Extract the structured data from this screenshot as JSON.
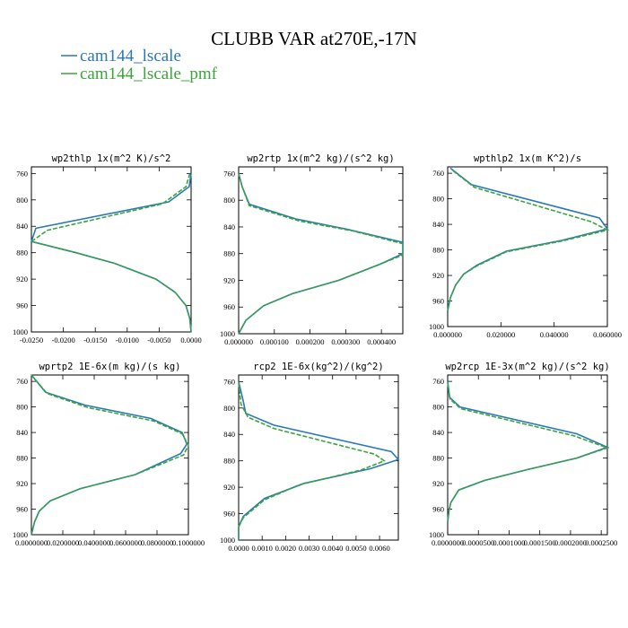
{
  "figure": {
    "title": "CLUBB VAR at270E,-17N",
    "legend": [
      {
        "label": "cam144_lscale",
        "color": "#2b78b6"
      },
      {
        "label": "cam144_lscale_pmf",
        "color": "#3aa53a"
      }
    ]
  },
  "chart_data": [
    {
      "type": "line",
      "title": "wp2thlp  1x(m^2 K)/s^2",
      "xlim": [
        -0.025,
        0.0
      ],
      "ylim": [
        1000,
        750
      ],
      "xticks": [
        -0.025,
        -0.02,
        -0.015,
        -0.01,
        -0.005,
        0.0
      ],
      "xtick_labels": [
        "-0.0250",
        "-0.0200",
        "-0.0150",
        "-0.0100",
        "-0.0050",
        "0.0000"
      ],
      "yticks": [
        760,
        800,
        840,
        880,
        920,
        960,
        1000
      ],
      "series": [
        {
          "name": "cam144_lscale",
          "color": "#2b78b6",
          "dashed": false,
          "x": [
            0.0,
            -0.0003,
            -0.0035,
            -0.0243,
            -0.025,
            -0.018,
            -0.012,
            -0.0055,
            -0.0025,
            -0.0008,
            -0.0002,
            0.0
          ],
          "y": [
            760,
            780,
            803,
            843,
            863,
            880,
            896,
            920,
            940,
            960,
            980,
            1000
          ]
        },
        {
          "name": "cam144_lscale_pmf",
          "color": "#3aa53a",
          "dashed": true,
          "x": [
            -0.0002,
            -0.0008,
            -0.0045,
            -0.0225,
            -0.025,
            -0.018,
            -0.012,
            -0.0055,
            -0.0025,
            -0.0008,
            -0.0002,
            0.0
          ],
          "y": [
            760,
            780,
            806,
            846,
            863,
            880,
            896,
            920,
            940,
            960,
            980,
            1000
          ]
        }
      ]
    },
    {
      "type": "line",
      "title": "wp2rtp  1x(m^2 kg)/(s^2 kg)",
      "xlim": [
        0.0,
        0.00046
      ],
      "ylim": [
        1000,
        750
      ],
      "xticks": [
        0.0,
        0.0001,
        0.0002,
        0.0003,
        0.0004
      ],
      "xtick_labels": [
        "0.000000",
        "0.000100",
        "0.000200",
        "0.000300",
        "0.000400"
      ],
      "yticks": [
        760,
        800,
        840,
        880,
        920,
        960,
        1000
      ],
      "series": [
        {
          "name": "cam144_lscale",
          "color": "#2b78b6",
          "dashed": false,
          "x": [
            0.0,
            1e-05,
            3e-05,
            0.00016,
            0.0003,
            0.00046,
            0.00046,
            0.0004,
            0.00028,
            0.00015,
            7e-05,
            2e-05,
            0.0
          ],
          "y": [
            760,
            780,
            806,
            828,
            843,
            863,
            880,
            895,
            920,
            940,
            958,
            980,
            1000
          ]
        },
        {
          "name": "cam144_lscale_pmf",
          "color": "#3aa53a",
          "dashed": true,
          "x": [
            0.0,
            1e-05,
            3e-05,
            0.00017,
            0.00032,
            0.00046,
            0.00046,
            0.0004,
            0.00028,
            0.00015,
            7e-05,
            2e-05,
            0.0
          ],
          "y": [
            760,
            780,
            808,
            831,
            846,
            865,
            882,
            895,
            920,
            940,
            958,
            980,
            1000
          ]
        }
      ]
    },
    {
      "type": "line",
      "title": "wpthlp2  1x(m K^2)/s",
      "xlim": [
        0.0,
        0.06
      ],
      "ylim": [
        1000,
        750
      ],
      "xticks": [
        0.0,
        0.02,
        0.04,
        0.06
      ],
      "xtick_labels": [
        "0.000000",
        "0.020000",
        "0.040000",
        "0.060000"
      ],
      "yticks": [
        760,
        800,
        840,
        880,
        920,
        960,
        1000
      ],
      "series": [
        {
          "name": "cam144_lscale",
          "color": "#2b78b6",
          "dashed": false,
          "x": [
            0.001,
            0.009,
            0.057,
            0.06,
            0.043,
            0.022,
            0.011,
            0.006,
            0.003,
            0.001,
            0.0
          ],
          "y": [
            752,
            778,
            830,
            847,
            865,
            882,
            904,
            918,
            935,
            955,
            975
          ]
        },
        {
          "name": "cam144_lscale_pmf",
          "color": "#3aa53a",
          "dashed": true,
          "x": [
            0.002,
            0.01,
            0.054,
            0.06,
            0.043,
            0.022,
            0.011,
            0.006,
            0.003,
            0.001,
            0.0
          ],
          "y": [
            756,
            782,
            836,
            849,
            866,
            883,
            905,
            918,
            935,
            955,
            975
          ]
        }
      ]
    },
    {
      "type": "line",
      "title": "wprtp2  1E-6x(m kg)/(s kg)",
      "xlim": [
        0.0,
        0.1
      ],
      "ylim": [
        1000,
        750
      ],
      "xticks": [
        0.0,
        0.02,
        0.04,
        0.06,
        0.08,
        0.1
      ],
      "xtick_labels": [
        "0.0000000",
        "0.0200000",
        "0.0400000",
        "0.0600000",
        "0.0800000",
        "0.1000000"
      ],
      "yticks": [
        760,
        800,
        840,
        880,
        920,
        960,
        1000
      ],
      "series": [
        {
          "name": "cam144_lscale",
          "color": "#2b78b6",
          "dashed": false,
          "x": [
            0.0,
            0.009,
            0.034,
            0.076,
            0.096,
            0.099,
            0.095,
            0.066,
            0.031,
            0.012,
            0.005,
            0.002,
            0.0
          ],
          "y": [
            750,
            777,
            797,
            818,
            840,
            858,
            873,
            906,
            928,
            947,
            963,
            980,
            1000
          ]
        },
        {
          "name": "cam144_lscale_pmf",
          "color": "#3aa53a",
          "dashed": true,
          "x": [
            0.0,
            0.01,
            0.036,
            0.078,
            0.096,
            0.1,
            0.097,
            0.066,
            0.031,
            0.012,
            0.005,
            0.002,
            0.0
          ],
          "y": [
            750,
            779,
            801,
            822,
            842,
            860,
            875,
            906,
            928,
            947,
            963,
            980,
            1000
          ]
        }
      ]
    },
    {
      "type": "line",
      "title": "rcp2  1E-6x(kg^2)/(kg^2)",
      "xlim": [
        0.0,
        0.0068
      ],
      "ylim": [
        1000,
        750
      ],
      "xticks": [
        0.0,
        0.001,
        0.002,
        0.003,
        0.004,
        0.005,
        0.006
      ],
      "xtick_labels": [
        "0.0000",
        "0.0010",
        "0.0020",
        "0.0030",
        "0.0040",
        "0.0050",
        "0.0060"
      ],
      "yticks": [
        760,
        800,
        840,
        880,
        920,
        960,
        1000
      ],
      "series": [
        {
          "name": "cam144_lscale",
          "color": "#2b78b6",
          "dashed": false,
          "x": [
            0.0,
            0.0002,
            0.0003,
            0.0015,
            0.0065,
            0.0068,
            0.0056,
            0.0028,
            0.0011,
            0.0002,
            0.0,
            0.0
          ],
          "y": [
            760,
            790,
            808,
            826,
            866,
            878,
            892,
            914,
            937,
            964,
            980,
            1000
          ]
        },
        {
          "name": "cam144_lscale_pmf",
          "color": "#3aa53a",
          "dashed": true,
          "x": [
            0.0,
            0.0001,
            0.0004,
            0.0015,
            0.0058,
            0.0062,
            0.0052,
            0.0026,
            0.0011,
            0.0002,
            0.0,
            0.0
          ],
          "y": [
            762,
            794,
            814,
            831,
            870,
            880,
            894,
            916,
            939,
            966,
            980,
            1000
          ]
        }
      ]
    },
    {
      "type": "line",
      "title": "wp2rcp  1E-3x(m^2 kg)/(s^2 kg)",
      "xlim": [
        0.0,
        0.00026
      ],
      "ylim": [
        1000,
        750
      ],
      "xticks": [
        0.0,
        5e-05,
        0.0001,
        0.00015,
        0.0002,
        0.00025
      ],
      "xtick_labels": [
        "0.0000000",
        "0.0000500",
        "0.0001000",
        "0.0001500",
        "0.0002000",
        "0.0002500"
      ],
      "yticks": [
        760,
        800,
        840,
        880,
        920,
        960,
        1000
      ],
      "series": [
        {
          "name": "cam144_lscale",
          "color": "#2b78b6",
          "dashed": false,
          "x": [
            0.0,
            3e-06,
            2e-05,
            0.00021,
            0.00026,
            0.00021,
            0.00013,
            6e-05,
            1.8e-05,
            5e-06,
            2e-06,
            0.0
          ],
          "y": [
            760,
            785,
            800,
            842,
            863,
            880,
            898,
            915,
            930,
            950,
            963,
            980
          ]
        },
        {
          "name": "cam144_lscale_pmf",
          "color": "#3aa53a",
          "dashed": true,
          "x": [
            0.0,
            4e-06,
            2.2e-05,
            0.000205,
            0.00026,
            0.00021,
            0.00013,
            6e-05,
            1.8e-05,
            5e-06,
            2e-06,
            0.0
          ],
          "y": [
            762,
            788,
            803,
            845,
            864,
            880,
            898,
            915,
            930,
            950,
            963,
            980
          ]
        }
      ]
    }
  ]
}
